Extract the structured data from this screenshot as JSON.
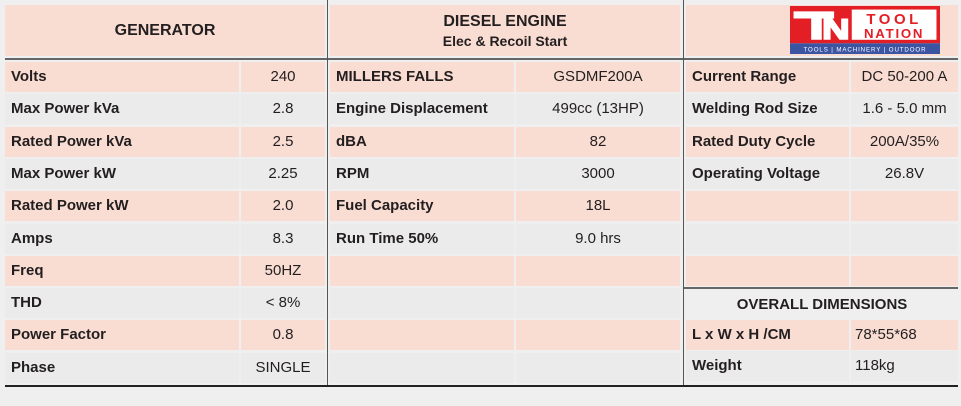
{
  "generator": {
    "title": "GENERATOR",
    "rows": [
      [
        "Volts",
        "240"
      ],
      [
        "Max Power kVa",
        "2.8"
      ],
      [
        "Rated Power kVa",
        "2.5"
      ],
      [
        "Max Power kW",
        "2.25"
      ],
      [
        "Rated Power kW",
        "2.0"
      ],
      [
        "Amps",
        "8.3"
      ],
      [
        "Freq",
        "50HZ"
      ],
      [
        "THD",
        "< 8%"
      ],
      [
        "Power Factor",
        "0.8"
      ],
      [
        "Phase",
        "SINGLE"
      ]
    ]
  },
  "diesel": {
    "title": "DIESEL ENGINE",
    "subtitle": "Elec & Recoil Start",
    "rows": [
      [
        "MILLERS FALLS",
        "GSDMF200A"
      ],
      [
        "Engine Displacement",
        "499cc (13HP)"
      ],
      [
        "dBA",
        "82"
      ],
      [
        "RPM",
        "3000"
      ],
      [
        "Fuel Capacity",
        "18L"
      ],
      [
        "Run Time 50%",
        "9.0 hrs"
      ],
      [
        "",
        ""
      ],
      [
        "",
        ""
      ],
      [
        "",
        ""
      ],
      [
        "",
        ""
      ]
    ]
  },
  "welder": {
    "rows": [
      [
        "Current Range",
        "DC 50-200 A"
      ],
      [
        "Welding Rod Size",
        "1.6 - 5.0 mm"
      ],
      [
        "Rated Duty Cycle",
        "200A/35%"
      ],
      [
        "Operating Voltage",
        "26.8V"
      ],
      [
        "",
        ""
      ],
      [
        "",
        ""
      ],
      [
        "",
        ""
      ]
    ]
  },
  "dimensions": {
    "title": "OVERALL DIMENSIONS",
    "rows": [
      [
        "L x W x H /CM",
        "78*55*68"
      ],
      [
        "Weight",
        "118kg"
      ]
    ]
  },
  "logo": {
    "line1": "TOOL",
    "line2": "NATION",
    "tagline": "TOOLS | MACHINERY | OUTDOOR",
    "colors": {
      "red": "#e31e25",
      "blue": "#3b55a3"
    }
  }
}
